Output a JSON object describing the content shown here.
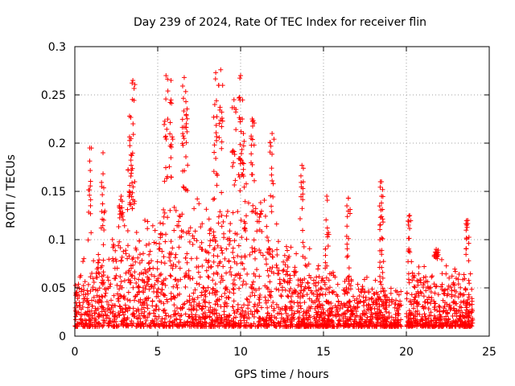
{
  "chart_data": {
    "type": "scatter",
    "title": "Day 239 of 2024, Rate Of TEC Index for receiver flin",
    "xlabel": "GPS time / hours",
    "ylabel": "ROTI / TECUs",
    "xlim": [
      0,
      25
    ],
    "ylim": [
      0,
      0.3
    ],
    "x_ticks": [
      0,
      5,
      10,
      15,
      20,
      25
    ],
    "x_tick_labels": [
      "0",
      "5",
      "10",
      "15",
      "20",
      "25"
    ],
    "y_ticks": [
      0,
      0.05,
      0.1,
      0.15,
      0.2,
      0.25,
      0.3
    ],
    "y_tick_labels": [
      "0",
      "0.05",
      "0.1",
      "0.15",
      "0.2",
      "0.25",
      "0.3"
    ],
    "grid": true,
    "marker": "+",
    "color": "#ff0000",
    "data_gap_hours": [
      19.7,
      20.0
    ],
    "series": [
      {
        "name": "ROTI",
        "envelope_hours": [
          0,
          0.5,
          1,
          1.5,
          2,
          2.5,
          3,
          3.5,
          4,
          4.5,
          5,
          5.5,
          6,
          6.5,
          7,
          7.5,
          8,
          8.5,
          9,
          9.5,
          10,
          10.5,
          11,
          11.5,
          12,
          12.5,
          13,
          13.5,
          14,
          14.5,
          15,
          15.5,
          16,
          16.5,
          17,
          17.5,
          18,
          18.5,
          19,
          19.5,
          20,
          20.5,
          21,
          21.5,
          22,
          22.5,
          23,
          23.5,
          24
        ],
        "typical_max": [
          0.06,
          0.09,
          0.1,
          0.1,
          0.11,
          0.12,
          0.12,
          0.13,
          0.12,
          0.12,
          0.13,
          0.16,
          0.16,
          0.15,
          0.14,
          0.14,
          0.15,
          0.16,
          0.15,
          0.15,
          0.16,
          0.17,
          0.16,
          0.14,
          0.12,
          0.11,
          0.1,
          0.09,
          0.09,
          0.08,
          0.07,
          0.07,
          0.07,
          0.07,
          0.06,
          0.06,
          0.06,
          0.06,
          0.05,
          0.05,
          0.07,
          0.08,
          0.08,
          0.08,
          0.08,
          0.07,
          0.07,
          0.07,
          0.06
        ],
        "floor": 0.01,
        "peaks": [
          {
            "x": 0.9,
            "y": 0.195
          },
          {
            "x": 1.7,
            "y": 0.19
          },
          {
            "x": 2.8,
            "y": 0.145
          },
          {
            "x": 3.3,
            "y": 0.228
          },
          {
            "x": 3.5,
            "y": 0.265
          },
          {
            "x": 3.4,
            "y": 0.177
          },
          {
            "x": 5.5,
            "y": 0.27
          },
          {
            "x": 5.8,
            "y": 0.265
          },
          {
            "x": 6.6,
            "y": 0.268
          },
          {
            "x": 6.7,
            "y": 0.243
          },
          {
            "x": 8.5,
            "y": 0.273
          },
          {
            "x": 8.8,
            "y": 0.276
          },
          {
            "x": 9.6,
            "y": 0.245
          },
          {
            "x": 10.0,
            "y": 0.27
          },
          {
            "x": 10.1,
            "y": 0.225
          },
          {
            "x": 10.7,
            "y": 0.225
          },
          {
            "x": 11.9,
            "y": 0.21
          },
          {
            "x": 13.7,
            "y": 0.177
          },
          {
            "x": 15.2,
            "y": 0.145
          },
          {
            "x": 16.5,
            "y": 0.143
          },
          {
            "x": 18.5,
            "y": 0.16
          },
          {
            "x": 18.5,
            "y": 0.145
          },
          {
            "x": 20.2,
            "y": 0.125
          },
          {
            "x": 21.8,
            "y": 0.09
          },
          {
            "x": 23.7,
            "y": 0.12
          }
        ]
      }
    ]
  }
}
